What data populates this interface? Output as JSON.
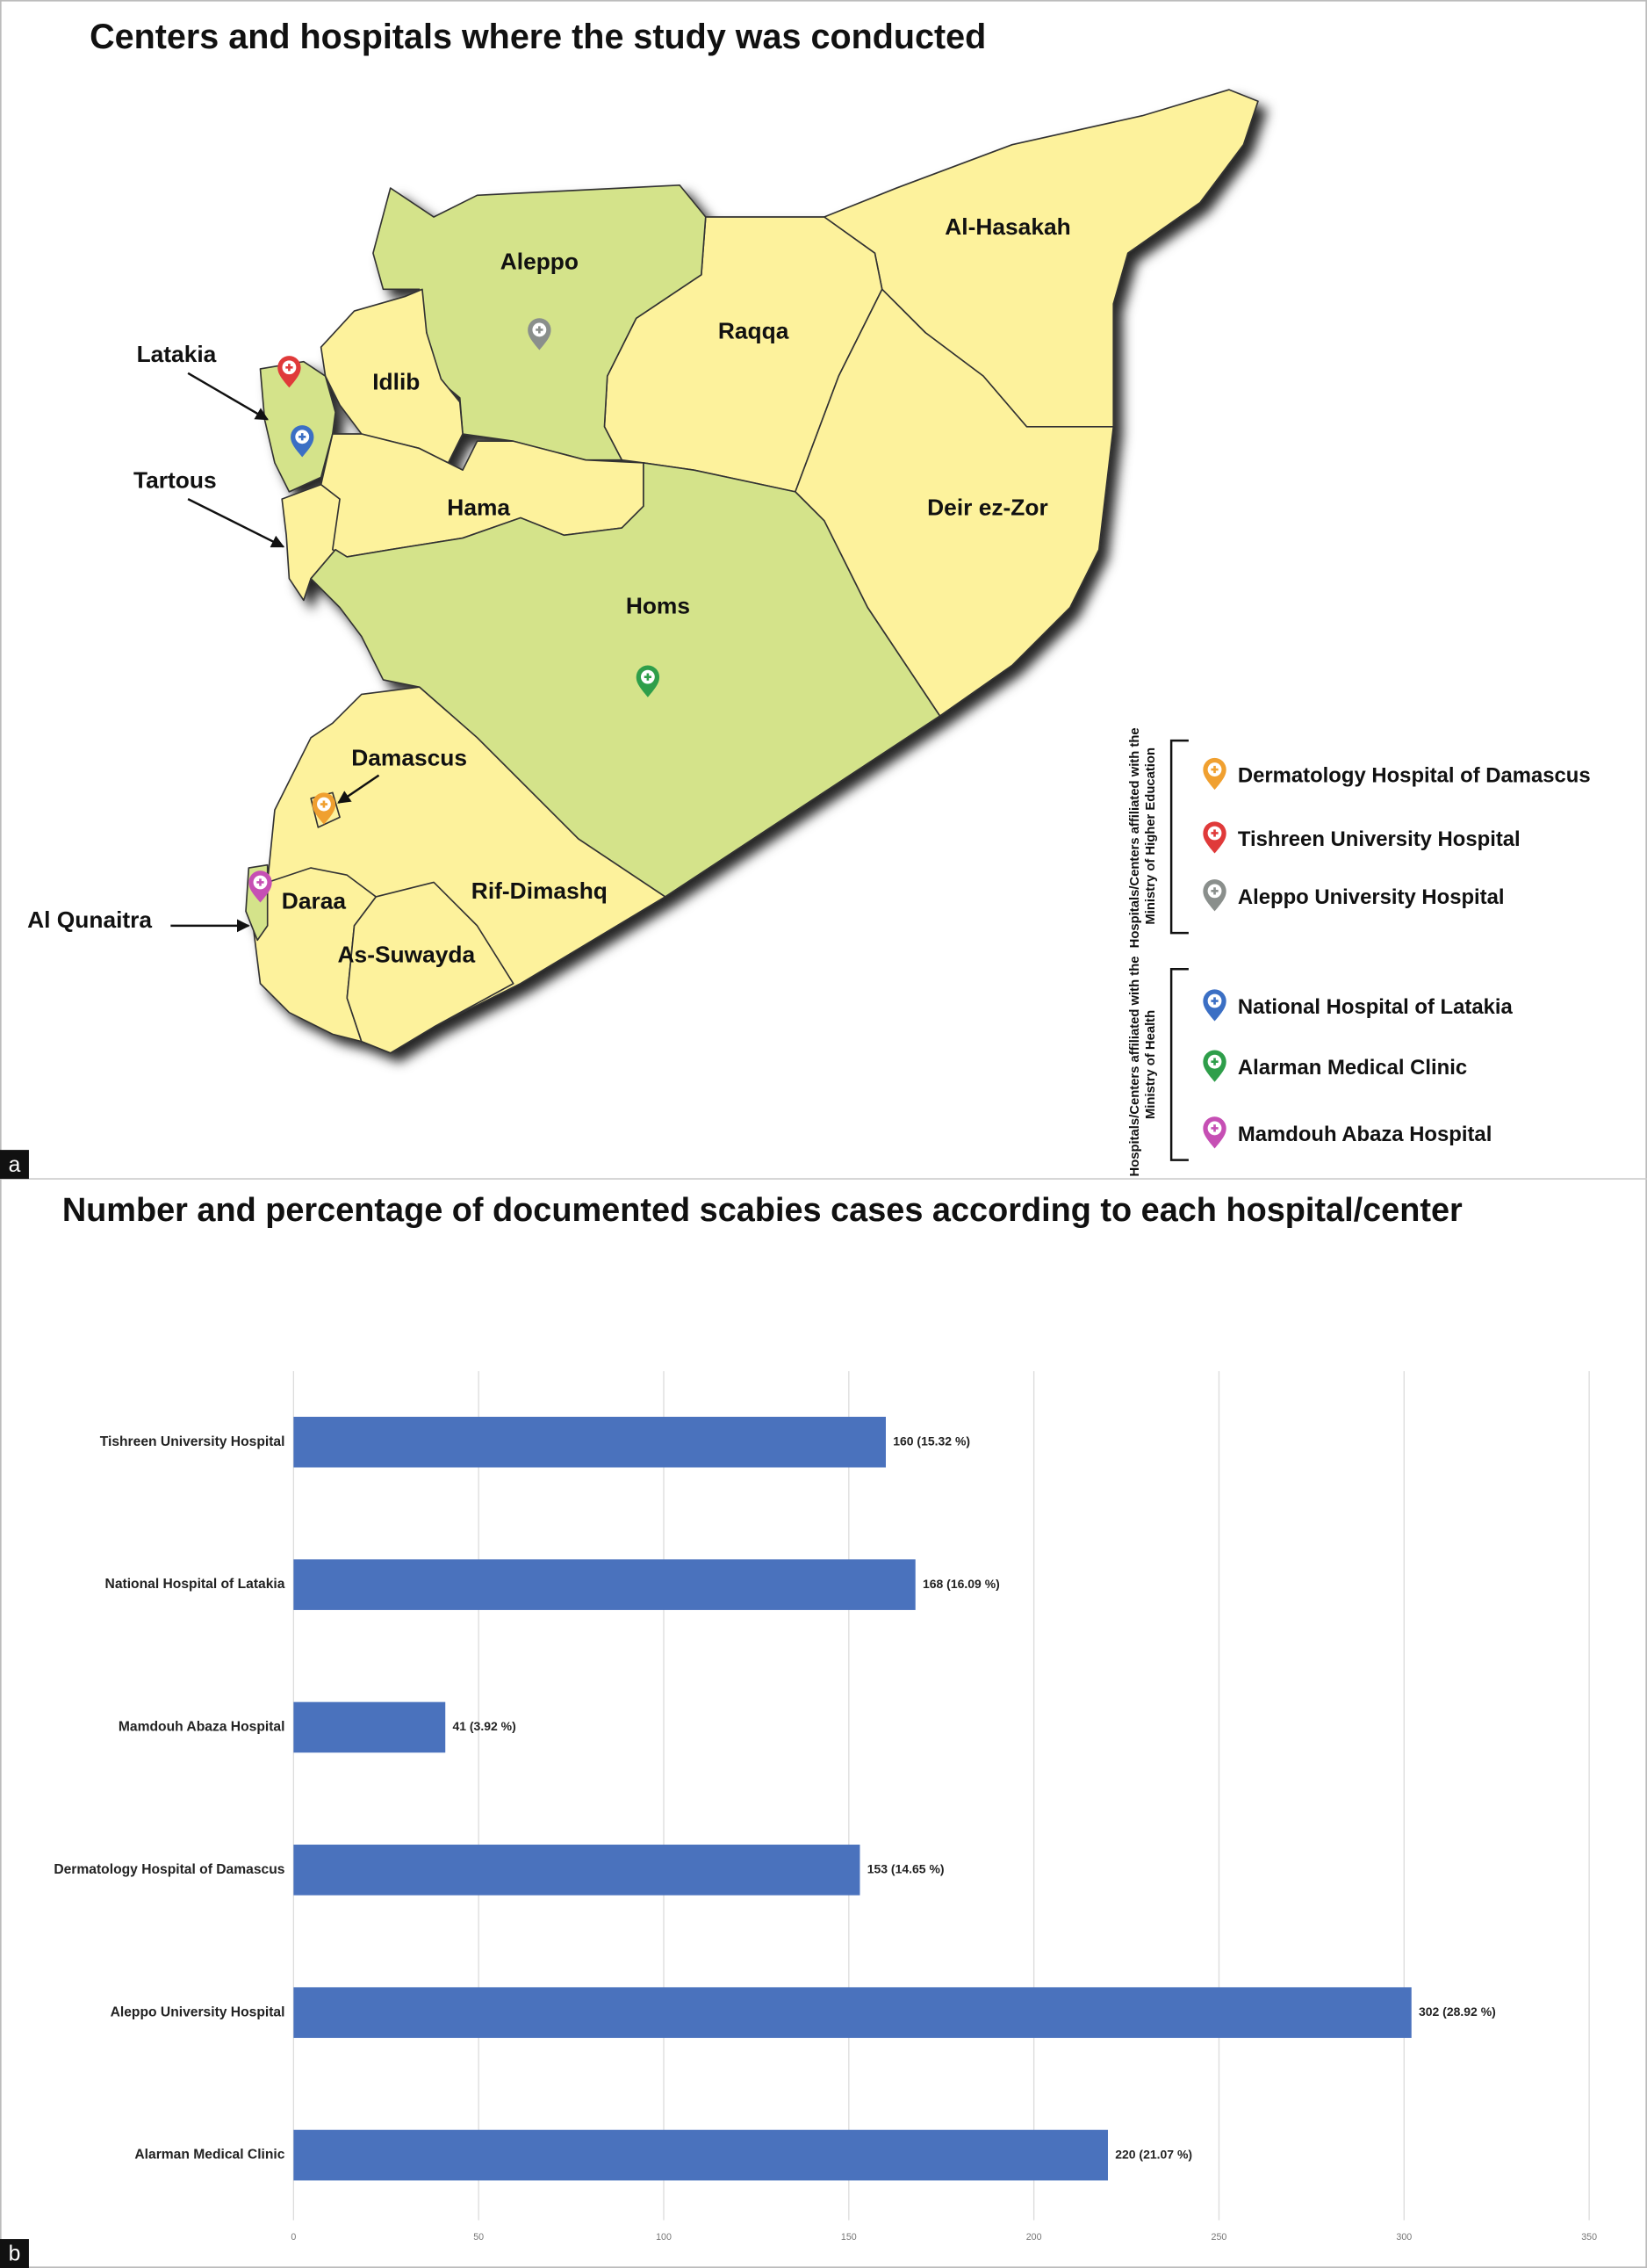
{
  "panel_labels": [
    "a",
    "b"
  ],
  "map": {
    "title": "Centers and hospitals where the study was conducted",
    "regions": [
      "Aleppo",
      "Raqqa",
      "Al-Hasakah",
      "Idlib",
      "Hama",
      "Deir ez-Zor",
      "Homs",
      "Damascus",
      "Rif-Dimashq",
      "Daraa",
      "As-Suwayda"
    ],
    "callouts": [
      "Latakia",
      "Tartous",
      "Al Qunaitra"
    ],
    "legend": [
      {
        "title": "Hospitals/Centers affiliated with the Ministry of Higher Education",
        "items": [
          {
            "label": "Dermatology Hospital of Damascus",
            "color": "#f0a030"
          },
          {
            "label": "Tishreen University Hospital",
            "color": "#e03a3a"
          },
          {
            "label": "Aleppo University Hospital",
            "color": "#8a8f8c"
          }
        ]
      },
      {
        "title": "Hospitals/Centers affiliated with the Ministry of Health",
        "items": [
          {
            "label": "National Hospital of Latakia",
            "color": "#3b6fc4"
          },
          {
            "label": "Alarman Medical Clinic",
            "color": "#2e9e4a"
          },
          {
            "label": "Mamdouh Abaza Hospital",
            "color": "#c64fb4"
          }
        ]
      }
    ]
  },
  "chart_data": {
    "type": "bar",
    "title": "Number and percentage of documented scabies cases according to each hospital/center",
    "categories": [
      "Tishreen University Hospital",
      "National Hospital of Latakia",
      "Mamdouh Abaza Hospital",
      "Dermatology Hospital of Damascus",
      "Aleppo University Hospital",
      "Alarman Medical Clinic"
    ],
    "values": [
      160,
      168,
      41,
      153,
      302,
      220
    ],
    "value_labels": [
      "160 (15.32 %)",
      "168 (16.09 %)",
      "41 (3.92 %)",
      "153 (14.65 %)",
      "302 (28.92 %)",
      "220 (21.07 %)"
    ],
    "color": "#4a72bd",
    "xlim": [
      0,
      350
    ],
    "xticks": [
      0,
      50,
      100,
      150,
      200,
      250,
      300,
      350
    ],
    "grid": true
  }
}
